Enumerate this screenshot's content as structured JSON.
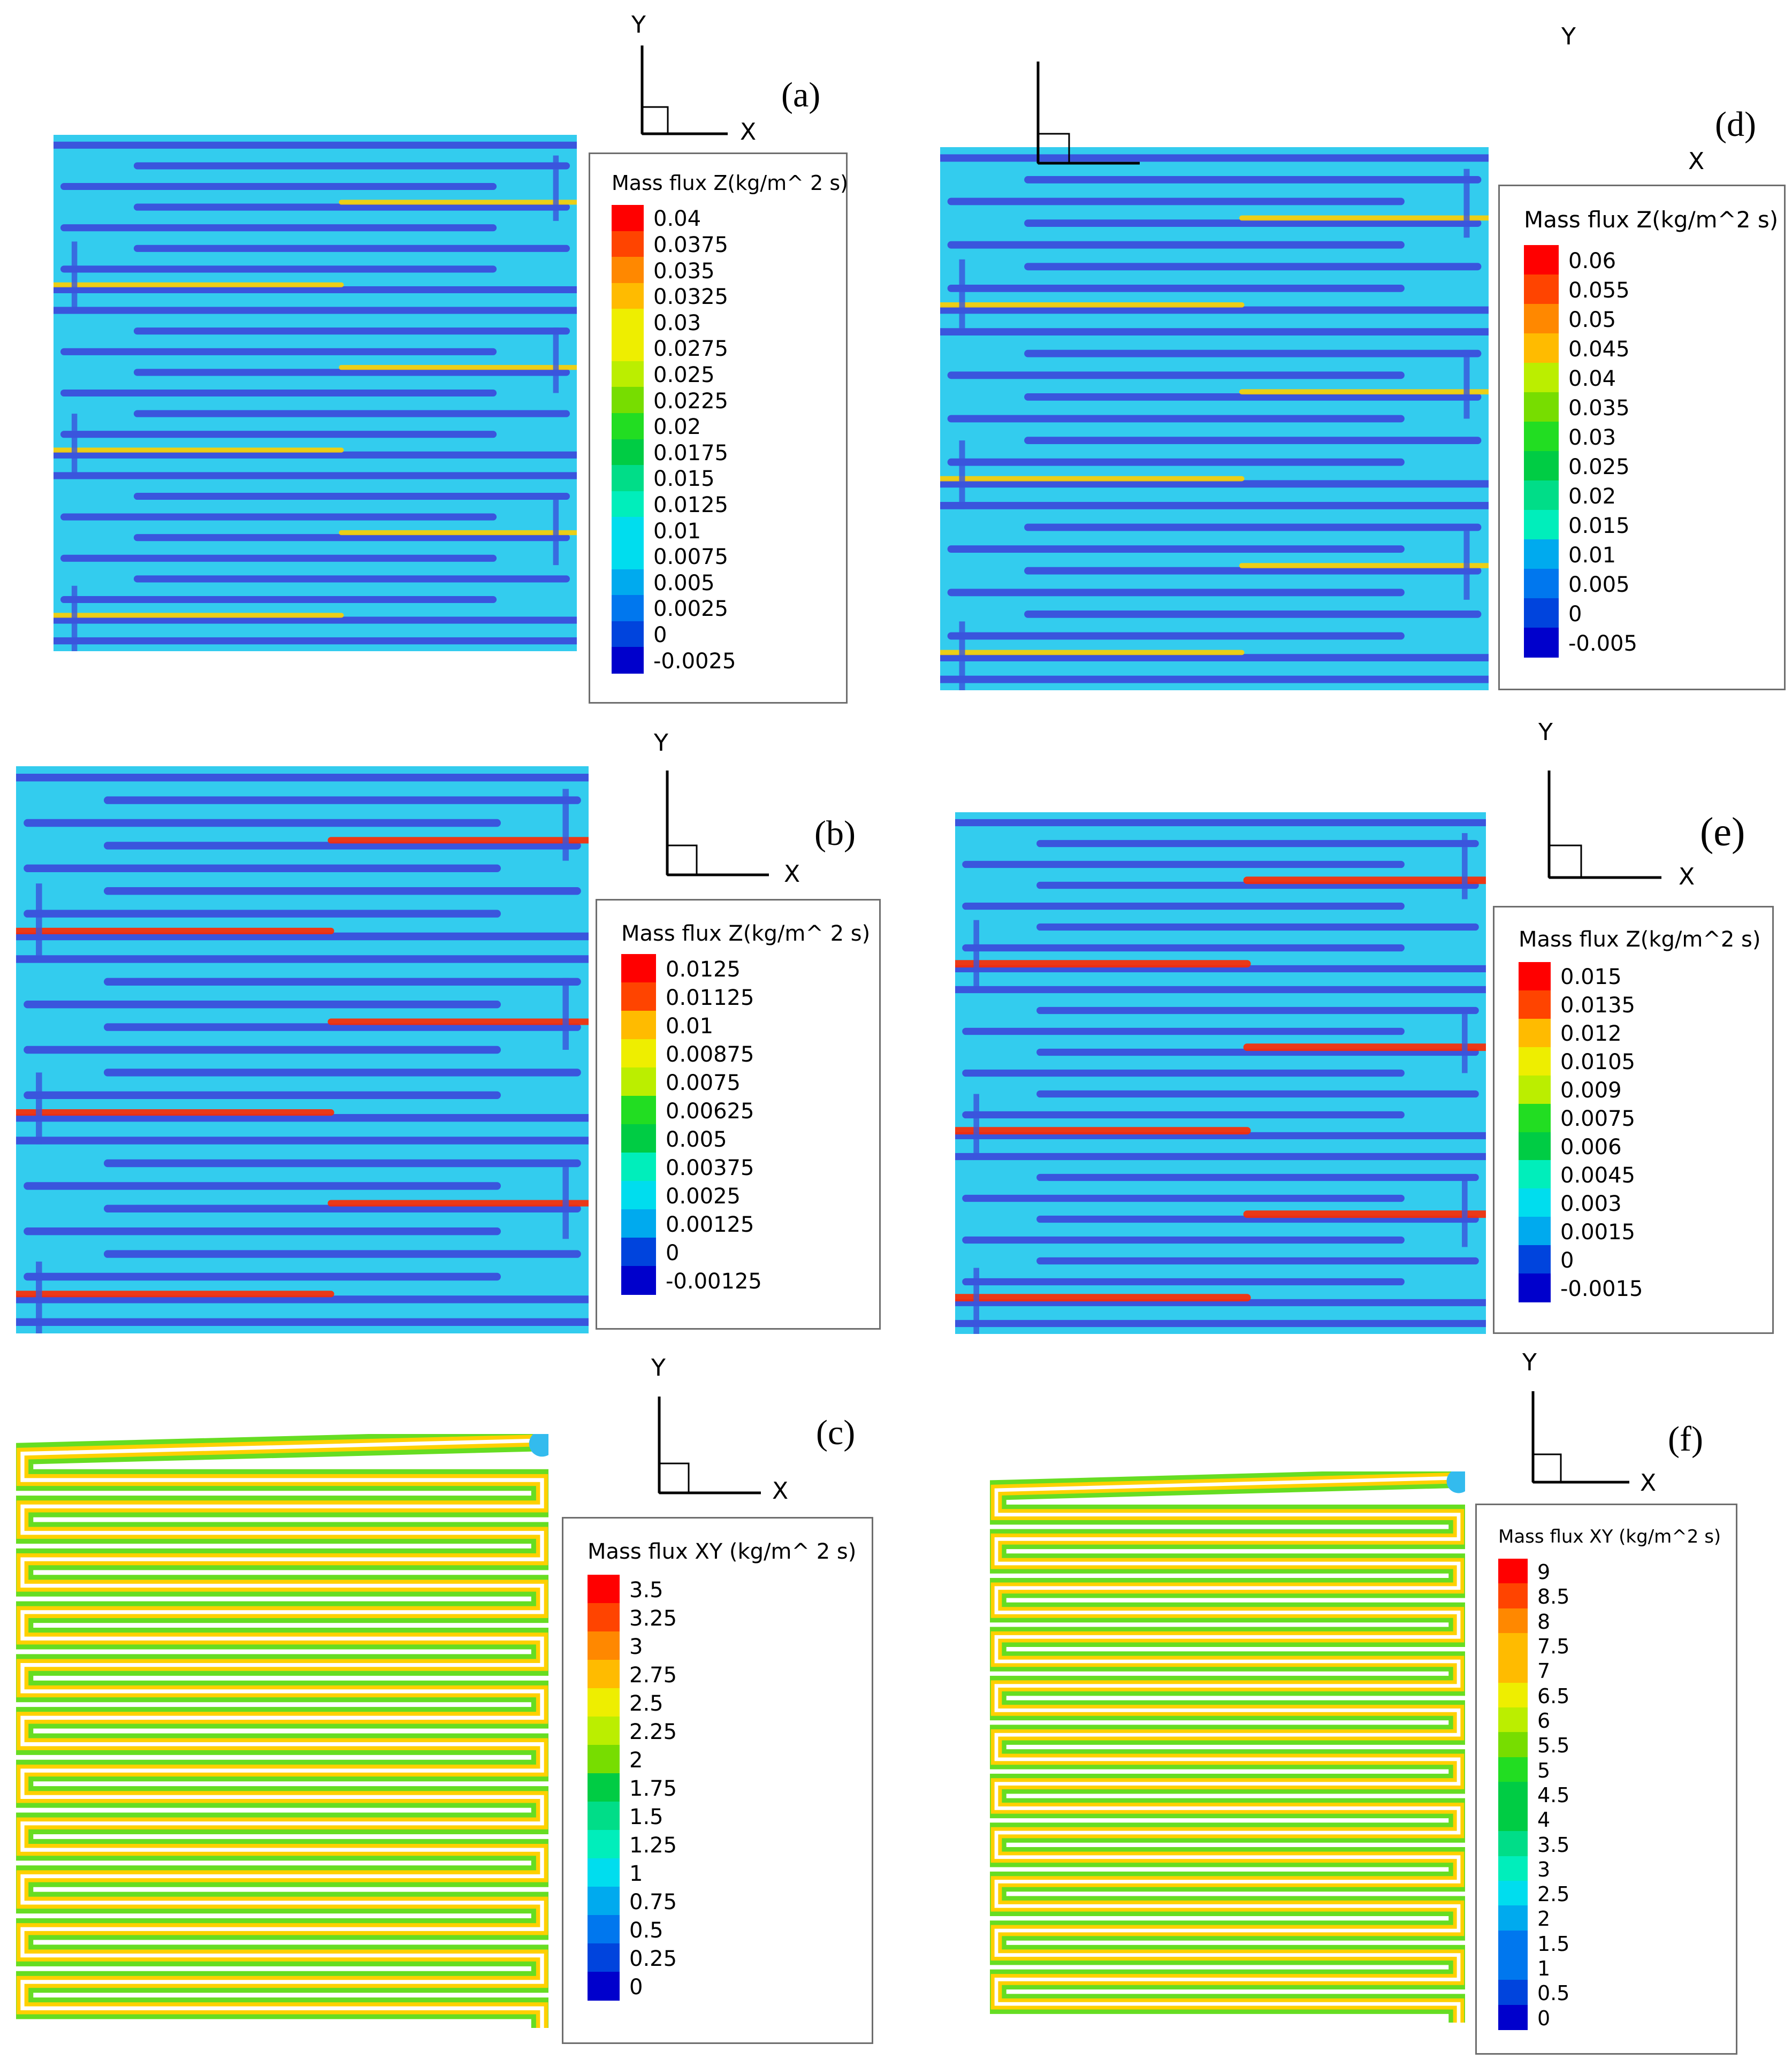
{
  "panels": [
    {
      "id": "a",
      "tag": "(a)",
      "variable": "Z",
      "bg": "#33ccee",
      "legend": {
        "title": "Mass flux Z(kg/m^ 2 s)",
        "levels": [
          "0.04",
          "0.0375",
          "0.035",
          "0.0325",
          "0.03",
          "0.0275",
          "0.025",
          "0.0225",
          "0.02",
          "0.0175",
          "0.015",
          "0.0125",
          "0.01",
          "0.0075",
          "0.005",
          "0.0025",
          "0",
          "-0.0025"
        ]
      }
    },
    {
      "id": "b",
      "tag": "(b)",
      "variable": "Z",
      "bg": "#33ccee",
      "legend": {
        "title": "Mass flux Z(kg/m^ 2 s)",
        "levels": [
          "0.0125",
          "0.01125",
          "0.01",
          "0.00875",
          "0.0075",
          "0.00625",
          "0.005",
          "0.00375",
          "0.0025",
          "0.00125",
          "0",
          "-0.00125"
        ]
      }
    },
    {
      "id": "c",
      "tag": "(c)",
      "variable": "XY",
      "bg": "#ffffff",
      "legend": {
        "title": "Mass flux XY (kg/m^ 2 s)",
        "levels": [
          "3.5",
          "3.25",
          "3",
          "2.75",
          "2.5",
          "2.25",
          "2",
          "1.75",
          "1.5",
          "1.25",
          "1",
          "0.75",
          "0.5",
          "0.25",
          "0"
        ]
      }
    },
    {
      "id": "d",
      "tag": "(d)",
      "variable": "Z",
      "bg": "#33ccee",
      "legend": {
        "title": "Mass flux Z(kg/m^2 s)",
        "levels": [
          "0.06",
          "0.055",
          "0.05",
          "0.045",
          "0.04",
          "0.035",
          "0.03",
          "0.025",
          "0.02",
          "0.015",
          "0.01",
          "0.005",
          "0",
          "-0.005"
        ]
      }
    },
    {
      "id": "e",
      "tag": "(e)",
      "variable": "Z",
      "bg": "#33ccee",
      "legend": {
        "title": "Mass flux Z(kg/m^2 s)",
        "levels": [
          "0.015",
          "0.0135",
          "0.012",
          "0.0105",
          "0.009",
          "0.0075",
          "0.006",
          "0.0045",
          "0.003",
          "0.0015",
          "0",
          "-0.0015"
        ]
      }
    },
    {
      "id": "f",
      "tag": "(f)",
      "variable": "XY",
      "bg": "#ffffff",
      "legend": {
        "title": "Mass flux XY (kg/m^2 s)",
        "levels": [
          "9",
          "8.5",
          "8",
          "7.5",
          "7",
          "6.5",
          "6",
          "5.5",
          "5",
          "4.5",
          "4",
          "3.5",
          "3",
          "2.5",
          "2",
          "1.5",
          "1",
          "0.5",
          "0"
        ]
      }
    }
  ],
  "axis_labels": {
    "x": "X",
    "y": "Y"
  },
  "colormap": [
    "#ff0000",
    "#ff4400",
    "#ff8800",
    "#ffbb00",
    "#eeee00",
    "#bbee00",
    "#77dd00",
    "#22dd22",
    "#00cc44",
    "#00dd88",
    "#00eebb",
    "#00ddee",
    "#00aaee",
    "#0077ee",
    "#0044dd",
    "#0000cc"
  ]
}
